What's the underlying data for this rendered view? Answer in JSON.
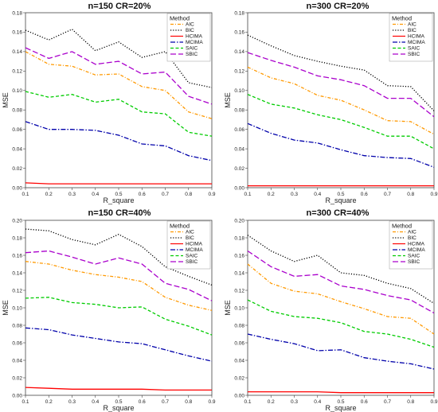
{
  "chart_data": [
    {
      "type": "line",
      "title": "n=150 CR=20%",
      "xlabel": "R_square",
      "ylabel": "MSE",
      "x": [
        0.1,
        0.2,
        0.3,
        0.4,
        0.5,
        0.6,
        0.7,
        0.8,
        0.9
      ],
      "xlim": [
        0.1,
        0.9
      ],
      "ylim": [
        0,
        0.18
      ],
      "yticks": [
        "0.00",
        "0.02",
        "0.04",
        "0.06",
        "0.08",
        "0.10",
        "0.12",
        "0.14",
        "0.16",
        "0.18"
      ],
      "xticks": [
        "0.1",
        "0.2",
        "0.3",
        "0.4",
        "0.5",
        "0.6",
        "0.7",
        "0.8",
        "0.9"
      ],
      "legend_title": "Method",
      "legend_position": "top-right",
      "series": [
        {
          "name": "AIC",
          "color": "#ff9900",
          "dash": "dotdash",
          "values": [
            0.14,
            0.127,
            0.125,
            0.116,
            0.117,
            0.104,
            0.1,
            0.078,
            0.071
          ]
        },
        {
          "name": "BIC",
          "color": "#000000",
          "dash": "dotted",
          "values": [
            0.162,
            0.152,
            0.163,
            0.141,
            0.15,
            0.134,
            0.14,
            0.108,
            0.103
          ]
        },
        {
          "name": "HCIMA",
          "color": "#ff0000",
          "dash": "solid",
          "values": [
            0.005,
            0.004,
            0.004,
            0.004,
            0.004,
            0.004,
            0.004,
            0.004,
            0.004
          ]
        },
        {
          "name": "MCIMA",
          "color": "#0000aa",
          "dash": "dashdot",
          "values": [
            0.068,
            0.06,
            0.06,
            0.059,
            0.054,
            0.045,
            0.043,
            0.033,
            0.028
          ]
        },
        {
          "name": "SAIC",
          "color": "#00cc00",
          "dash": "dashed",
          "values": [
            0.099,
            0.093,
            0.096,
            0.088,
            0.091,
            0.078,
            0.076,
            0.057,
            0.053
          ]
        },
        {
          "name": "SBIC",
          "color": "#aa00cc",
          "dash": "longdash",
          "values": [
            0.144,
            0.133,
            0.14,
            0.127,
            0.13,
            0.117,
            0.119,
            0.094,
            0.086
          ]
        }
      ]
    },
    {
      "type": "line",
      "title": "n=300 CR=20%",
      "xlabel": "R_square",
      "ylabel": "MSE",
      "x": [
        0.1,
        0.2,
        0.3,
        0.4,
        0.5,
        0.6,
        0.7,
        0.8,
        0.9
      ],
      "xlim": [
        0.1,
        0.9
      ],
      "ylim": [
        0,
        0.18
      ],
      "yticks": [
        "0.00",
        "0.02",
        "0.04",
        "0.06",
        "0.08",
        "0.10",
        "0.12",
        "0.14",
        "0.16",
        "0.18"
      ],
      "xticks": [
        "0.1",
        "0.2",
        "0.3",
        "0.4",
        "0.5",
        "0.6",
        "0.7",
        "0.8",
        "0.9"
      ],
      "legend_title": "Method",
      "legend_position": "top-right",
      "series": [
        {
          "name": "AIC",
          "color": "#ff9900",
          "dash": "dotdash",
          "values": [
            0.124,
            0.113,
            0.107,
            0.095,
            0.09,
            0.08,
            0.069,
            0.068,
            0.055
          ]
        },
        {
          "name": "BIC",
          "color": "#000000",
          "dash": "dotted",
          "values": [
            0.157,
            0.146,
            0.136,
            0.13,
            0.125,
            0.121,
            0.105,
            0.104,
            0.079
          ]
        },
        {
          "name": "HCIMA",
          "color": "#ff0000",
          "dash": "solid",
          "values": [
            0.002,
            0.002,
            0.002,
            0.002,
            0.002,
            0.002,
            0.002,
            0.002,
            0.002
          ]
        },
        {
          "name": "MCIMA",
          "color": "#0000aa",
          "dash": "dashdot",
          "values": [
            0.066,
            0.056,
            0.049,
            0.046,
            0.039,
            0.033,
            0.031,
            0.03,
            0.021
          ]
        },
        {
          "name": "SAIC",
          "color": "#00cc00",
          "dash": "dashed",
          "values": [
            0.096,
            0.086,
            0.082,
            0.075,
            0.07,
            0.062,
            0.053,
            0.053,
            0.04
          ]
        },
        {
          "name": "SBIC",
          "color": "#aa00cc",
          "dash": "longdash",
          "values": [
            0.139,
            0.131,
            0.124,
            0.115,
            0.111,
            0.105,
            0.092,
            0.092,
            0.073
          ]
        }
      ]
    },
    {
      "type": "line",
      "title": "n=150 CR=40%",
      "xlabel": "R_square",
      "ylabel": "MSE",
      "x": [
        0.1,
        0.2,
        0.3,
        0.4,
        0.5,
        0.6,
        0.7,
        0.8,
        0.9
      ],
      "xlim": [
        0.1,
        0.9
      ],
      "ylim": [
        0,
        0.2
      ],
      "yticks": [
        "0.00",
        "0.02",
        "0.04",
        "0.06",
        "0.08",
        "0.10",
        "0.12",
        "0.14",
        "0.16",
        "0.18",
        "0.20"
      ],
      "xticks": [
        "0.1",
        "0.2",
        "0.3",
        "0.4",
        "0.5",
        "0.6",
        "0.7",
        "0.8",
        "0.9"
      ],
      "legend_title": "Method",
      "legend_position": "top-right",
      "series": [
        {
          "name": "AIC",
          "color": "#ff9900",
          "dash": "dotdash",
          "values": [
            0.153,
            0.15,
            0.143,
            0.138,
            0.135,
            0.13,
            0.112,
            0.103,
            0.097
          ]
        },
        {
          "name": "BIC",
          "color": "#000000",
          "dash": "dotted",
          "values": [
            0.19,
            0.188,
            0.178,
            0.172,
            0.184,
            0.17,
            0.147,
            0.136,
            0.126
          ]
        },
        {
          "name": "HCIMA",
          "color": "#ff0000",
          "dash": "solid",
          "values": [
            0.009,
            0.008,
            0.007,
            0.007,
            0.007,
            0.007,
            0.006,
            0.006,
            0.006
          ]
        },
        {
          "name": "MCIMA",
          "color": "#0000aa",
          "dash": "dashdot",
          "values": [
            0.077,
            0.075,
            0.069,
            0.065,
            0.061,
            0.059,
            0.052,
            0.045,
            0.039
          ]
        },
        {
          "name": "SAIC",
          "color": "#00cc00",
          "dash": "dashed",
          "values": [
            0.111,
            0.112,
            0.106,
            0.104,
            0.1,
            0.101,
            0.087,
            0.079,
            0.069
          ]
        },
        {
          "name": "SBIC",
          "color": "#aa00cc",
          "dash": "longdash",
          "values": [
            0.163,
            0.165,
            0.158,
            0.15,
            0.157,
            0.15,
            0.128,
            0.121,
            0.108
          ]
        }
      ]
    },
    {
      "type": "line",
      "title": "n=300 CR=40%",
      "xlabel": "R_square",
      "ylabel": "MSE",
      "x": [
        0.1,
        0.2,
        0.3,
        0.4,
        0.5,
        0.6,
        0.7,
        0.8,
        0.9
      ],
      "xlim": [
        0.1,
        0.9
      ],
      "ylim": [
        0,
        0.2
      ],
      "yticks": [
        "0.00",
        "0.02",
        "0.04",
        "0.06",
        "0.08",
        "0.10",
        "0.12",
        "0.14",
        "0.16",
        "0.18",
        "0.20"
      ],
      "xticks": [
        "0.1",
        "0.2",
        "0.3",
        "0.4",
        "0.5",
        "0.6",
        "0.7",
        "0.8",
        "0.9"
      ],
      "legend_title": "Method",
      "legend_position": "top-right",
      "series": [
        {
          "name": "AIC",
          "color": "#ff9900",
          "dash": "dotdash",
          "values": [
            0.15,
            0.128,
            0.119,
            0.116,
            0.107,
            0.099,
            0.09,
            0.088,
            0.07
          ]
        },
        {
          "name": "BIC",
          "color": "#000000",
          "dash": "dotted",
          "values": [
            0.183,
            0.165,
            0.153,
            0.16,
            0.14,
            0.137,
            0.128,
            0.122,
            0.105
          ]
        },
        {
          "name": "HCIMA",
          "color": "#ff0000",
          "dash": "solid",
          "values": [
            0.004,
            0.004,
            0.004,
            0.004,
            0.003,
            0.003,
            0.003,
            0.003,
            0.003
          ]
        },
        {
          "name": "MCIMA",
          "color": "#0000aa",
          "dash": "dashdot",
          "values": [
            0.07,
            0.064,
            0.059,
            0.051,
            0.052,
            0.043,
            0.039,
            0.036,
            0.03
          ]
        },
        {
          "name": "SAIC",
          "color": "#00cc00",
          "dash": "dashed",
          "values": [
            0.109,
            0.096,
            0.09,
            0.088,
            0.083,
            0.073,
            0.07,
            0.064,
            0.055
          ]
        },
        {
          "name": "SBIC",
          "color": "#aa00cc",
          "dash": "longdash",
          "values": [
            0.165,
            0.147,
            0.136,
            0.138,
            0.125,
            0.121,
            0.114,
            0.109,
            0.094
          ]
        }
      ]
    }
  ]
}
